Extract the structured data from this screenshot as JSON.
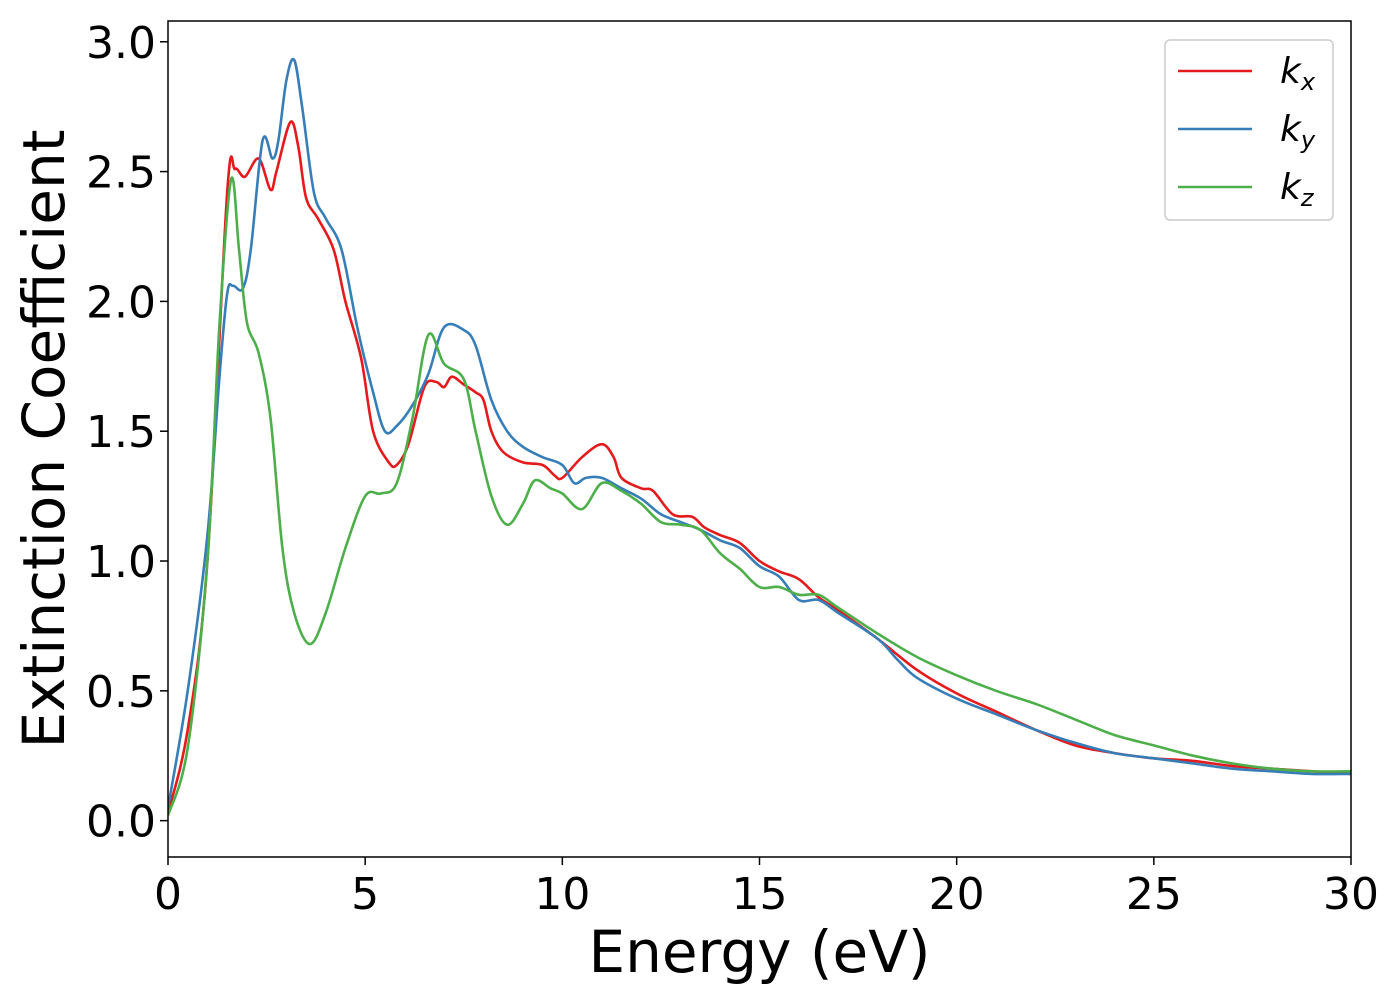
{
  "chart_data": {
    "type": "line",
    "title": "",
    "xlabel": "Energy (eV)",
    "ylabel": "Extinction Coefficient",
    "xlim": [
      0,
      30
    ],
    "ylim": [
      -0.14,
      3.08
    ],
    "xticks": [
      0,
      5,
      10,
      15,
      20,
      25,
      30
    ],
    "xtick_labels": [
      "0",
      "5",
      "10",
      "15",
      "20",
      "25",
      "30"
    ],
    "yticks": [
      0.0,
      0.5,
      1.0,
      1.5,
      2.0,
      2.5,
      3.0
    ],
    "ytick_labels": [
      "0.0",
      "0.5",
      "1.0",
      "1.5",
      "2.0",
      "2.5",
      "3.0"
    ],
    "grid": false,
    "legend_position": "top-right",
    "series": [
      {
        "name": "k",
        "subscript": "x",
        "color": "#e41a1c",
        "points": [
          [
            0,
            0.03
          ],
          [
            0.5,
            0.35
          ],
          [
            1.0,
            1.0
          ],
          [
            1.5,
            2.42
          ],
          [
            1.7,
            2.51
          ],
          [
            1.95,
            2.48
          ],
          [
            2.3,
            2.55
          ],
          [
            2.6,
            2.43
          ],
          [
            2.75,
            2.5
          ],
          [
            3.1,
            2.69
          ],
          [
            3.3,
            2.6
          ],
          [
            3.5,
            2.4
          ],
          [
            3.8,
            2.32
          ],
          [
            4.2,
            2.2
          ],
          [
            4.5,
            2.0
          ],
          [
            4.9,
            1.78
          ],
          [
            5.2,
            1.5
          ],
          [
            5.6,
            1.38
          ],
          [
            5.8,
            1.37
          ],
          [
            6.1,
            1.45
          ],
          [
            6.5,
            1.67
          ],
          [
            6.8,
            1.69
          ],
          [
            7.0,
            1.67
          ],
          [
            7.2,
            1.71
          ],
          [
            7.5,
            1.68
          ],
          [
            7.8,
            1.65
          ],
          [
            8.0,
            1.62
          ],
          [
            8.2,
            1.5
          ],
          [
            8.5,
            1.42
          ],
          [
            9.0,
            1.38
          ],
          [
            9.5,
            1.37
          ],
          [
            9.8,
            1.33
          ],
          [
            10.0,
            1.32
          ],
          [
            10.5,
            1.4
          ],
          [
            11.0,
            1.45
          ],
          [
            11.3,
            1.4
          ],
          [
            11.5,
            1.32
          ],
          [
            12.0,
            1.28
          ],
          [
            12.3,
            1.27
          ],
          [
            12.8,
            1.18
          ],
          [
            13.3,
            1.17
          ],
          [
            13.6,
            1.13
          ],
          [
            14.0,
            1.1
          ],
          [
            14.5,
            1.07
          ],
          [
            15.0,
            1.0
          ],
          [
            15.5,
            0.96
          ],
          [
            16.0,
            0.93
          ],
          [
            16.5,
            0.86
          ],
          [
            17.0,
            0.81
          ],
          [
            18.0,
            0.7
          ],
          [
            19.0,
            0.58
          ],
          [
            20.0,
            0.49
          ],
          [
            21.0,
            0.42
          ],
          [
            22.0,
            0.35
          ],
          [
            23.0,
            0.29
          ],
          [
            24.0,
            0.26
          ],
          [
            25.0,
            0.24
          ],
          [
            26.0,
            0.23
          ],
          [
            27.0,
            0.21
          ],
          [
            28.0,
            0.2
          ],
          [
            29.0,
            0.19
          ],
          [
            30.0,
            0.18
          ]
        ]
      },
      {
        "name": "k",
        "subscript": "y",
        "color": "#377eb8",
        "points": [
          [
            0,
            0.05
          ],
          [
            0.5,
            0.5
          ],
          [
            1.0,
            1.1
          ],
          [
            1.3,
            1.7
          ],
          [
            1.5,
            2.03
          ],
          [
            1.65,
            2.06
          ],
          [
            1.9,
            2.05
          ],
          [
            2.1,
            2.2
          ],
          [
            2.4,
            2.62
          ],
          [
            2.65,
            2.55
          ],
          [
            2.8,
            2.62
          ],
          [
            3.0,
            2.85
          ],
          [
            3.2,
            2.93
          ],
          [
            3.4,
            2.75
          ],
          [
            3.7,
            2.42
          ],
          [
            4.0,
            2.32
          ],
          [
            4.4,
            2.2
          ],
          [
            4.8,
            1.9
          ],
          [
            5.2,
            1.65
          ],
          [
            5.5,
            1.5
          ],
          [
            5.8,
            1.52
          ],
          [
            6.2,
            1.6
          ],
          [
            6.6,
            1.72
          ],
          [
            7.0,
            1.9
          ],
          [
            7.5,
            1.89
          ],
          [
            7.8,
            1.83
          ],
          [
            8.2,
            1.62
          ],
          [
            8.6,
            1.5
          ],
          [
            9.0,
            1.44
          ],
          [
            9.5,
            1.4
          ],
          [
            10.0,
            1.37
          ],
          [
            10.3,
            1.3
          ],
          [
            10.6,
            1.32
          ],
          [
            11.0,
            1.32
          ],
          [
            11.5,
            1.28
          ],
          [
            12.0,
            1.24
          ],
          [
            12.5,
            1.18
          ],
          [
            13.0,
            1.15
          ],
          [
            13.5,
            1.12
          ],
          [
            14.0,
            1.08
          ],
          [
            14.5,
            1.05
          ],
          [
            15.0,
            0.98
          ],
          [
            15.5,
            0.94
          ],
          [
            16.0,
            0.85
          ],
          [
            16.5,
            0.85
          ],
          [
            17.0,
            0.8
          ],
          [
            18.0,
            0.7
          ],
          [
            18.5,
            0.62
          ],
          [
            19.0,
            0.55
          ],
          [
            20.0,
            0.47
          ],
          [
            21.0,
            0.41
          ],
          [
            22.0,
            0.35
          ],
          [
            23.0,
            0.3
          ],
          [
            24.0,
            0.26
          ],
          [
            25.0,
            0.24
          ],
          [
            26.0,
            0.22
          ],
          [
            27.0,
            0.2
          ],
          [
            28.0,
            0.19
          ],
          [
            29.0,
            0.18
          ],
          [
            30.0,
            0.18
          ]
        ]
      },
      {
        "name": "k",
        "subscript": "z",
        "color": "#4daf4a",
        "points": [
          [
            0,
            0.02
          ],
          [
            0.5,
            0.28
          ],
          [
            1.0,
            1.0
          ],
          [
            1.3,
            1.9
          ],
          [
            1.6,
            2.47
          ],
          [
            1.8,
            2.2
          ],
          [
            2.0,
            1.92
          ],
          [
            2.3,
            1.8
          ],
          [
            2.6,
            1.55
          ],
          [
            2.9,
            1.05
          ],
          [
            3.2,
            0.8
          ],
          [
            3.6,
            0.68
          ],
          [
            4.0,
            0.8
          ],
          [
            4.5,
            1.05
          ],
          [
            5.0,
            1.25
          ],
          [
            5.4,
            1.26
          ],
          [
            5.8,
            1.3
          ],
          [
            6.2,
            1.55
          ],
          [
            6.6,
            1.87
          ],
          [
            7.0,
            1.76
          ],
          [
            7.5,
            1.7
          ],
          [
            7.8,
            1.5
          ],
          [
            8.2,
            1.25
          ],
          [
            8.6,
            1.14
          ],
          [
            9.0,
            1.22
          ],
          [
            9.3,
            1.31
          ],
          [
            9.7,
            1.28
          ],
          [
            10.0,
            1.26
          ],
          [
            10.5,
            1.2
          ],
          [
            11.0,
            1.3
          ],
          [
            11.5,
            1.27
          ],
          [
            12.0,
            1.22
          ],
          [
            12.5,
            1.15
          ],
          [
            13.0,
            1.14
          ],
          [
            13.5,
            1.12
          ],
          [
            14.0,
            1.03
          ],
          [
            14.5,
            0.97
          ],
          [
            15.0,
            0.9
          ],
          [
            15.5,
            0.9
          ],
          [
            16.0,
            0.87
          ],
          [
            16.5,
            0.87
          ],
          [
            17.0,
            0.82
          ],
          [
            18.0,
            0.72
          ],
          [
            19.0,
            0.63
          ],
          [
            20.0,
            0.56
          ],
          [
            21.0,
            0.5
          ],
          [
            22.0,
            0.45
          ],
          [
            23.0,
            0.39
          ],
          [
            24.0,
            0.33
          ],
          [
            25.0,
            0.29
          ],
          [
            26.0,
            0.25
          ],
          [
            27.0,
            0.22
          ],
          [
            28.0,
            0.2
          ],
          [
            29.0,
            0.19
          ],
          [
            30.0,
            0.19
          ]
        ]
      }
    ]
  }
}
